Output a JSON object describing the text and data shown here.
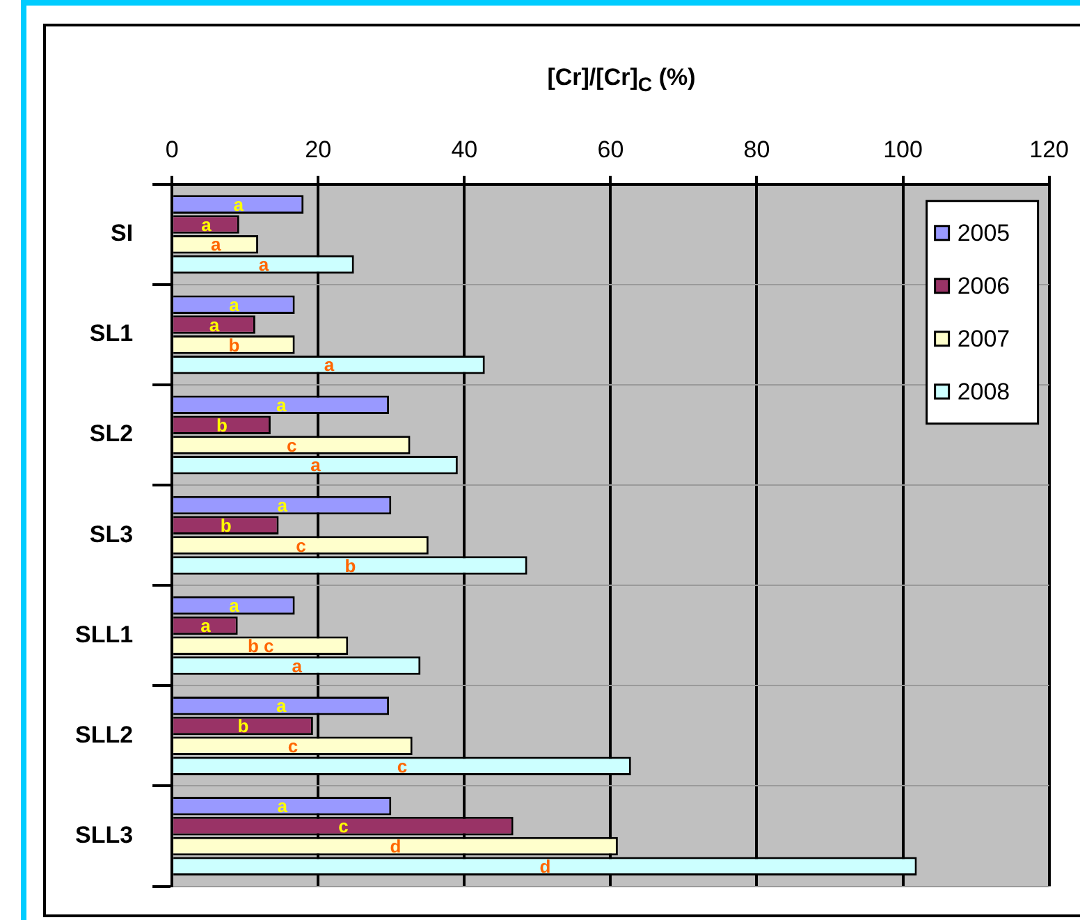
{
  "chart_data": {
    "type": "bar",
    "orientation": "horizontal",
    "xlabel": "[Cr]/[Cr]$_{C}$ (%)",
    "categories": [
      "SI",
      "SL1",
      "SL2",
      "SL3",
      "SLL1",
      "SLL2",
      "SLL3"
    ],
    "series": [
      {
        "name": "2005",
        "color": "#9999ff",
        "values": [
          18.0,
          16.8,
          29.7,
          30.0,
          16.8,
          29.7,
          30.0
        ],
        "value_labels": [
          "a",
          "a",
          "a",
          "a",
          "a",
          "a",
          "a"
        ]
      },
      {
        "name": "2006",
        "color": "#993366",
        "values": [
          9.2,
          11.4,
          13.5,
          14.6,
          9.0,
          19.3,
          46.7
        ],
        "value_labels": [
          "a",
          "a",
          "b",
          "b",
          "a",
          "b",
          "c"
        ]
      },
      {
        "name": "2007",
        "color": "#ffffcc",
        "values": [
          11.8,
          16.8,
          32.6,
          35.1,
          24.1,
          32.9,
          61.0
        ],
        "value_labels": [
          "a",
          "b",
          "c",
          "c",
          "b c",
          "c",
          "d"
        ]
      },
      {
        "name": "2008",
        "color": "#ccffff",
        "values": [
          24.9,
          42.8,
          39.1,
          48.6,
          34.0,
          62.8,
          101.9
        ],
        "value_labels": [
          "a",
          "a",
          "a",
          "b",
          "a",
          "c",
          "d"
        ]
      }
    ],
    "xlim": [
      0,
      120
    ],
    "xticks": [
      0,
      20,
      40,
      60,
      80,
      100,
      120
    ],
    "grid": true,
    "legend": "top right"
  }
}
